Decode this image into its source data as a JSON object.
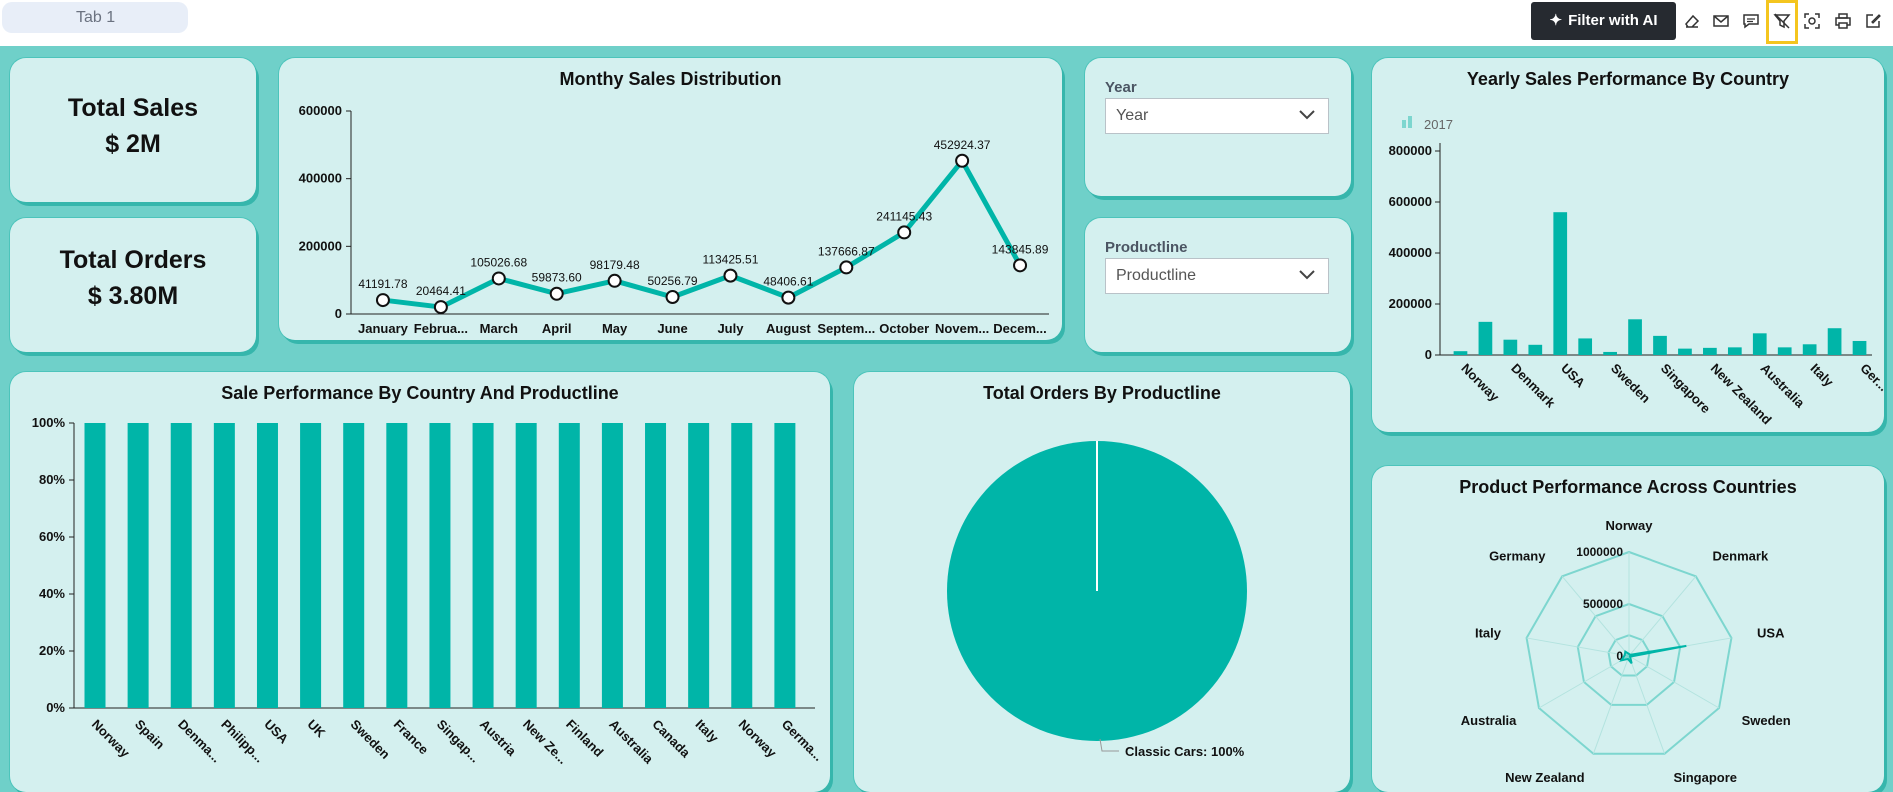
{
  "tab": {
    "label": "Tab 1"
  },
  "toolbar": {
    "filter_ai_label": "Filter with AI",
    "icons": [
      "eraser-icon",
      "mail-icon",
      "comment-icon",
      "filter-off-icon",
      "screenshot-icon",
      "print-icon",
      "edit-icon"
    ]
  },
  "kpis": {
    "total_sales": {
      "title": "Total Sales",
      "value": "$ 2M"
    },
    "total_orders": {
      "title": "Total Orders",
      "value": "$ 3.80M"
    }
  },
  "slicers": {
    "year": {
      "label": "Year",
      "placeholder": "Year"
    },
    "productline": {
      "label": "Productline",
      "placeholder": "Productline"
    }
  },
  "colors": {
    "accent": "#00b5a8",
    "canvas": "#6fd0c9",
    "card": "#d4f0ef"
  },
  "chart_data": [
    {
      "id": "monthly",
      "type": "line",
      "title": "Monthy Sales Distribution",
      "categories": [
        "January",
        "Februa...",
        "March",
        "April",
        "May",
        "June",
        "July",
        "August",
        "Septem...",
        "October",
        "Novem...",
        "Decem..."
      ],
      "values": [
        41191.78,
        20464.41,
        105026.68,
        59873.6,
        98179.48,
        50256.79,
        113425.51,
        48406.61,
        137666.87,
        241145.43,
        452924.37,
        143845.89
      ],
      "data_labels": [
        "41191.78",
        "20464.41",
        "105026.68",
        "59873.60",
        "98179.48",
        "50256.79",
        "113425.51",
        "48406.61",
        "137666.87",
        "241145.43",
        "452924.37",
        "143845.89"
      ],
      "yticks": [
        "0",
        "200000",
        "400000",
        "600000"
      ],
      "ylim": [
        0,
        600000
      ]
    },
    {
      "id": "yearly",
      "type": "bar",
      "title": "Yearly Sales Performance By Country",
      "legend": "2017",
      "categories": [
        "Norway",
        "",
        "Denmark",
        "",
        "USA",
        "",
        "Sweden",
        "",
        "Singapore",
        "",
        "New Zealand",
        "",
        "Australia",
        "",
        "Italy",
        "",
        "Ger..."
      ],
      "values": [
        15000,
        130000,
        60000,
        40000,
        560000,
        65000,
        12000,
        140000,
        75000,
        25000,
        28000,
        30000,
        85000,
        30000,
        42000,
        105000,
        55000
      ],
      "yticks": [
        "0",
        "200000",
        "400000",
        "600000",
        "800000"
      ],
      "ylim": [
        0,
        800000
      ]
    },
    {
      "id": "sale_perf",
      "type": "bar",
      "title": "Sale Performance By Country And Productline",
      "categories": [
        "Norway",
        "Spain",
        "Denma...",
        "Philipp...",
        "USA",
        "UK",
        "Sweden",
        "France",
        "Singap...",
        "Austria",
        "New Ze...",
        "Finland",
        "Australia",
        "Canada",
        "Italy",
        "Norway",
        "Germa..."
      ],
      "values": [
        100,
        100,
        100,
        100,
        100,
        100,
        100,
        100,
        100,
        100,
        100,
        100,
        100,
        100,
        100,
        100,
        100
      ],
      "yticks": [
        "0%",
        "20%",
        "40%",
        "60%",
        "80%",
        "100%"
      ],
      "ylim": [
        0,
        100
      ]
    },
    {
      "id": "orders_pie",
      "type": "pie",
      "title": "Total Orders By Productline",
      "slices": [
        {
          "label": "Classic Cars: 100%",
          "value": 100
        }
      ]
    },
    {
      "id": "radar",
      "type": "radar",
      "title": "Product Performance Across Countries",
      "axes": [
        "Norway",
        "Denmark",
        "USA",
        "Sweden",
        "Singapore",
        "New Zealand",
        "Australia",
        "Italy",
        "Germany"
      ],
      "values": [
        20000,
        15000,
        560000,
        12000,
        75000,
        30000,
        85000,
        42000,
        55000
      ],
      "ticks": [
        "0",
        "500000",
        "1000000"
      ],
      "rmax": 1000000
    }
  ]
}
